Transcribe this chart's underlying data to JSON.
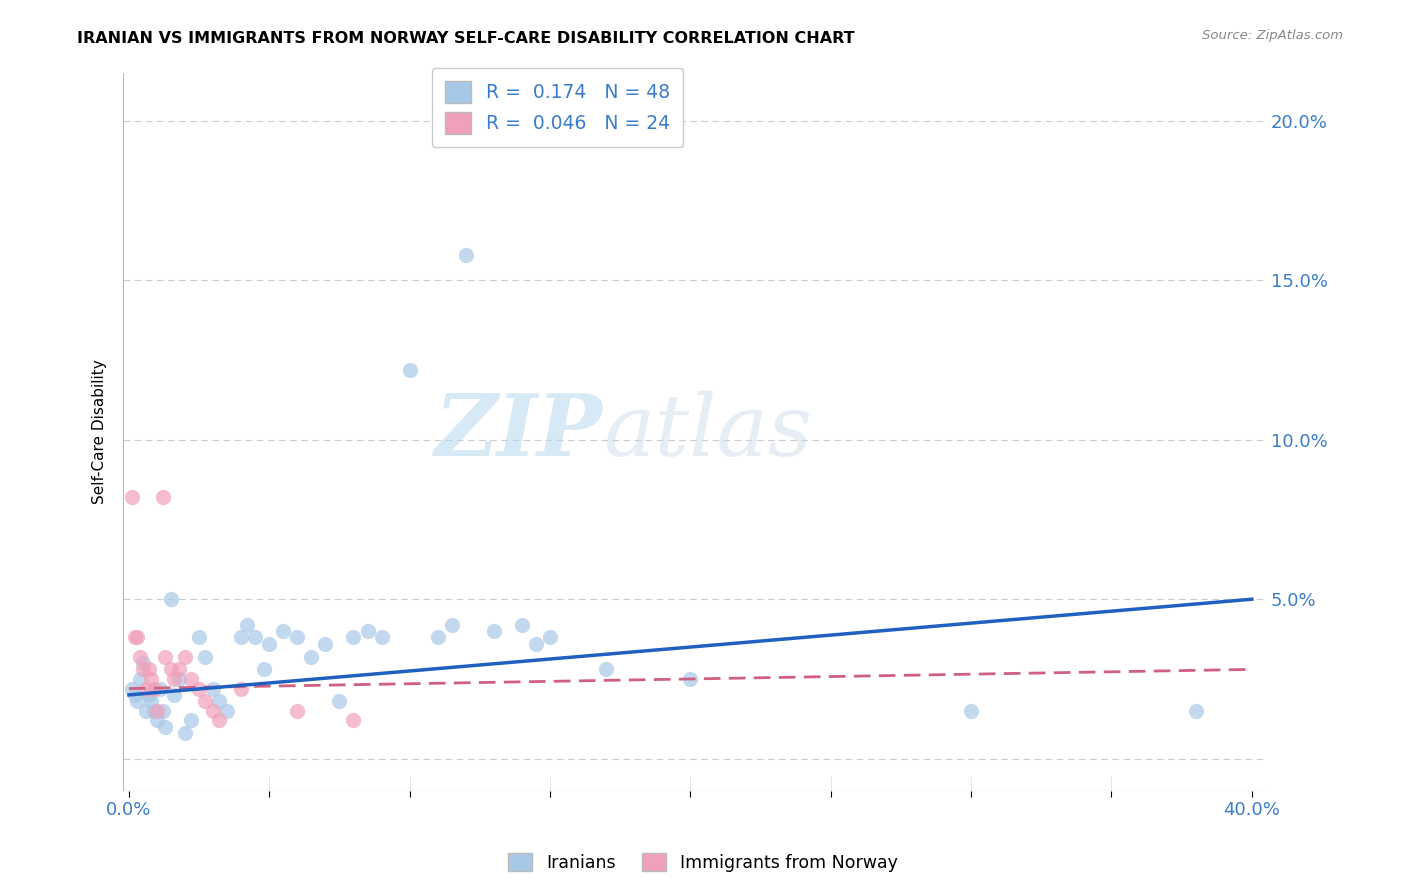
{
  "title": "IRANIAN VS IMMIGRANTS FROM NORWAY SELF-CARE DISABILITY CORRELATION CHART",
  "source": "Source: ZipAtlas.com",
  "ylabel": "Self-Care Disability",
  "y_ticks": [
    0.0,
    0.05,
    0.1,
    0.15,
    0.2
  ],
  "y_tick_labels": [
    "",
    "5.0%",
    "10.0%",
    "15.0%",
    "20.0%"
  ],
  "x_ticks": [
    0.0,
    0.05,
    0.1,
    0.15,
    0.2,
    0.25,
    0.3,
    0.35,
    0.4
  ],
  "xlim": [
    -0.002,
    0.405
  ],
  "ylim": [
    -0.01,
    0.215
  ],
  "blue_color": "#A8C8E8",
  "pink_color": "#F0A0B8",
  "blue_line_color": "#2060C0",
  "pink_line_color": "#D06080",
  "R_blue": 0.174,
  "N_blue": 48,
  "R_pink": 0.046,
  "N_pink": 24,
  "legend_label_blue": "Iranians",
  "legend_label_pink": "Immigrants from Norway",
  "watermark_zip": "ZIP",
  "watermark_atlas": "atlas",
  "iranians_x": [
    0.001,
    0.002,
    0.003,
    0.004,
    0.005,
    0.006,
    0.007,
    0.008,
    0.009,
    0.01,
    0.011,
    0.012,
    0.013,
    0.015,
    0.016,
    0.018,
    0.02,
    0.022,
    0.025,
    0.027,
    0.03,
    0.032,
    0.035,
    0.04,
    0.042,
    0.045,
    0.048,
    0.05,
    0.055,
    0.06,
    0.065,
    0.07,
    0.075,
    0.08,
    0.085,
    0.09,
    0.1,
    0.11,
    0.115,
    0.12,
    0.13,
    0.14,
    0.145,
    0.15,
    0.17,
    0.2,
    0.3,
    0.38
  ],
  "iranians_y": [
    0.022,
    0.02,
    0.018,
    0.025,
    0.03,
    0.015,
    0.02,
    0.018,
    0.015,
    0.012,
    0.022,
    0.015,
    0.01,
    0.05,
    0.02,
    0.025,
    0.008,
    0.012,
    0.038,
    0.032,
    0.022,
    0.018,
    0.015,
    0.038,
    0.042,
    0.038,
    0.028,
    0.036,
    0.04,
    0.038,
    0.032,
    0.036,
    0.018,
    0.038,
    0.04,
    0.038,
    0.122,
    0.038,
    0.042,
    0.158,
    0.04,
    0.042,
    0.036,
    0.038,
    0.028,
    0.025,
    0.015,
    0.015
  ],
  "norway_x": [
    0.001,
    0.002,
    0.003,
    0.004,
    0.005,
    0.006,
    0.007,
    0.008,
    0.009,
    0.01,
    0.012,
    0.013,
    0.015,
    0.016,
    0.018,
    0.02,
    0.022,
    0.025,
    0.027,
    0.03,
    0.032,
    0.04,
    0.06,
    0.08
  ],
  "norway_y": [
    0.082,
    0.038,
    0.038,
    0.032,
    0.028,
    0.022,
    0.028,
    0.025,
    0.022,
    0.015,
    0.082,
    0.032,
    0.028,
    0.025,
    0.028,
    0.032,
    0.025,
    0.022,
    0.018,
    0.015,
    0.012,
    0.022,
    0.015,
    0.012
  ],
  "blue_line_x": [
    0.0,
    0.4
  ],
  "blue_line_y": [
    0.02,
    0.05
  ],
  "pink_line_x": [
    0.0,
    0.4
  ],
  "pink_line_y": [
    0.022,
    0.028
  ]
}
